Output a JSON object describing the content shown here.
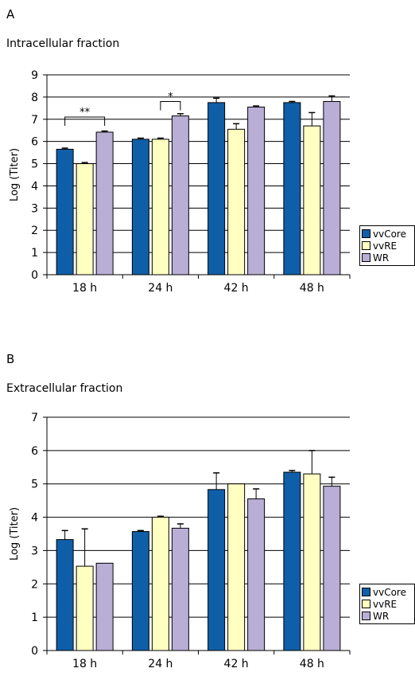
{
  "panels": [
    {
      "label": "A",
      "title": "Intracellular fraction"
    },
    {
      "label": "B",
      "title": "Extracellular fraction"
    }
  ],
  "legend": [
    {
      "name": "vvCore",
      "color": "#0f5fa8"
    },
    {
      "name": "vvRE",
      "color": "#ffffc2"
    },
    {
      "name": "WR",
      "color": "#b9aed6"
    }
  ],
  "chart_data": [
    {
      "type": "bar",
      "title": "Intracellular fraction",
      "ylabel": "Log (Titer)",
      "xlabel": "",
      "categories": [
        "18 h",
        "24 h",
        "42 h",
        "48 h"
      ],
      "ylim": [
        0,
        9
      ],
      "yticks": [
        0,
        1,
        2,
        3,
        4,
        5,
        6,
        7,
        8,
        9
      ],
      "grid": true,
      "legend_position": "right",
      "series": [
        {
          "name": "vvCore",
          "color": "#0f5fa8",
          "values": [
            5.65,
            6.1,
            7.75,
            7.75
          ],
          "errors": [
            0.05,
            0.05,
            0.2,
            0.05
          ]
        },
        {
          "name": "vvRE",
          "color": "#ffffc2",
          "values": [
            5.0,
            6.1,
            6.55,
            6.7
          ],
          "errors": [
            0.05,
            0.05,
            0.25,
            0.6
          ]
        },
        {
          "name": "WR",
          "color": "#b9aed6",
          "values": [
            6.42,
            7.15,
            7.55,
            7.8
          ],
          "errors": [
            0.05,
            0.1,
            0.05,
            0.25
          ]
        }
      ],
      "annotations": [
        {
          "text": "**",
          "category": 0,
          "from_series": 0,
          "to_series": 2,
          "y": 7.1
        },
        {
          "text": "*",
          "category": 1,
          "from_series": 1,
          "to_series": 2,
          "y": 7.8
        }
      ]
    },
    {
      "type": "bar",
      "title": "Extracellular fraction",
      "ylabel": "Log (Titer)",
      "xlabel": "",
      "categories": [
        "18 h",
        "24 h",
        "42 h",
        "48 h"
      ],
      "ylim": [
        0,
        7
      ],
      "yticks": [
        0,
        1,
        2,
        3,
        4,
        5,
        6,
        7
      ],
      "grid": true,
      "legend_position": "right",
      "series": [
        {
          "name": "vvCore",
          "color": "#0f5fa8",
          "values": [
            3.33,
            3.57,
            4.83,
            5.35
          ],
          "errors": [
            0.27,
            0.03,
            0.5,
            0.05
          ]
        },
        {
          "name": "vvRE",
          "color": "#ffffc2",
          "values": [
            2.53,
            4.0,
            5.0,
            5.3
          ],
          "errors": [
            1.12,
            0.03,
            0.0,
            0.7
          ]
        },
        {
          "name": "WR",
          "color": "#b9aed6",
          "values": [
            2.62,
            3.67,
            4.55,
            4.93
          ],
          "errors": [
            0.0,
            0.13,
            0.3,
            0.27
          ]
        }
      ],
      "annotations": []
    }
  ]
}
